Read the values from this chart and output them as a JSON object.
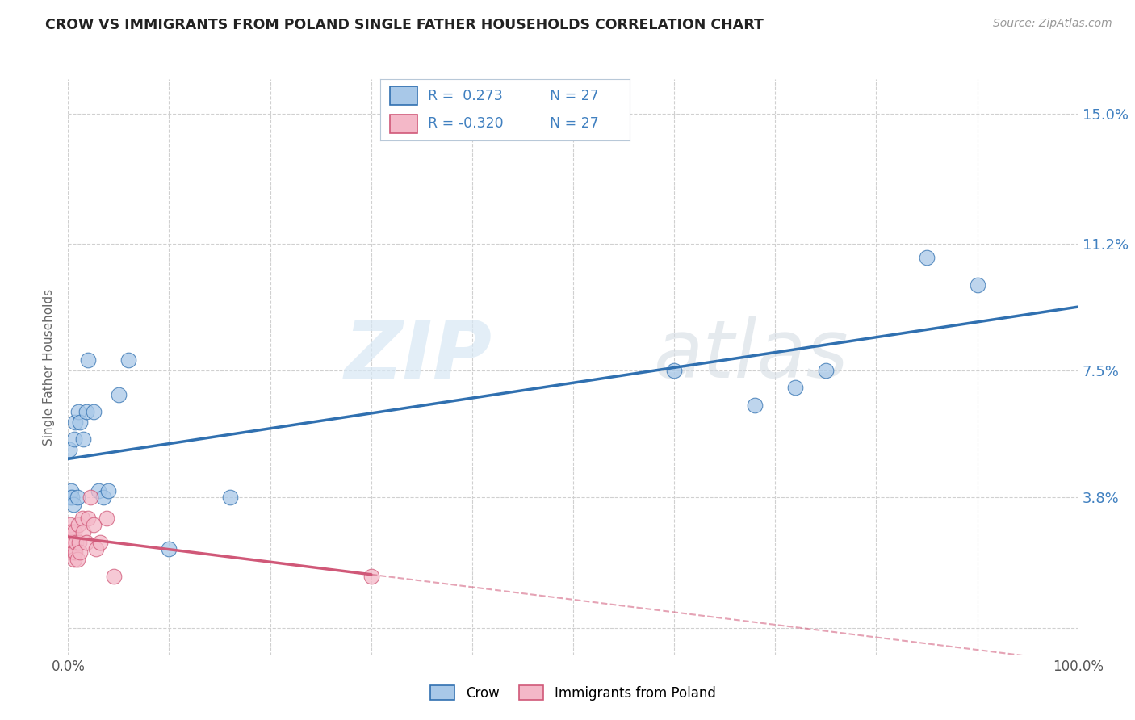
{
  "title": "CROW VS IMMIGRANTS FROM POLAND SINGLE FATHER HOUSEHOLDS CORRELATION CHART",
  "source": "Source: ZipAtlas.com",
  "ylabel": "Single Father Households",
  "yticks": [
    0.0,
    0.038,
    0.075,
    0.112,
    0.15
  ],
  "ytick_labels": [
    "",
    "3.8%",
    "7.5%",
    "11.2%",
    "15.0%"
  ],
  "xlim": [
    0.0,
    1.0
  ],
  "ylim": [
    -0.008,
    0.16
  ],
  "legend_r_blue": "R =  0.273",
  "legend_n_blue": "N = 27",
  "legend_r_pink": "R = -0.320",
  "legend_n_pink": "N = 27",
  "legend_label_blue": "Crow",
  "legend_label_pink": "Immigrants from Poland",
  "watermark_zip": "ZIP",
  "watermark_atlas": "atlas",
  "blue_color": "#a8c8e8",
  "pink_color": "#f4b8c8",
  "blue_line_color": "#3070b0",
  "pink_line_color": "#d05878",
  "blue_text_color": "#4080c0",
  "crow_x": [
    0.001,
    0.002,
    0.003,
    0.004,
    0.005,
    0.006,
    0.007,
    0.009,
    0.01,
    0.012,
    0.015,
    0.018,
    0.02,
    0.025,
    0.03,
    0.035,
    0.04,
    0.05,
    0.06,
    0.1,
    0.16,
    0.6,
    0.68,
    0.72,
    0.75,
    0.85,
    0.9
  ],
  "crow_y": [
    0.052,
    0.038,
    0.04,
    0.038,
    0.036,
    0.055,
    0.06,
    0.038,
    0.063,
    0.06,
    0.055,
    0.063,
    0.078,
    0.063,
    0.04,
    0.038,
    0.04,
    0.068,
    0.078,
    0.023,
    0.038,
    0.075,
    0.065,
    0.07,
    0.075,
    0.108,
    0.1
  ],
  "poland_x": [
    0.001,
    0.002,
    0.002,
    0.003,
    0.003,
    0.004,
    0.005,
    0.005,
    0.006,
    0.006,
    0.007,
    0.008,
    0.009,
    0.01,
    0.011,
    0.012,
    0.014,
    0.015,
    0.018,
    0.02,
    0.022,
    0.025,
    0.028,
    0.032,
    0.038,
    0.045,
    0.3
  ],
  "poland_y": [
    0.028,
    0.025,
    0.03,
    0.022,
    0.028,
    0.025,
    0.025,
    0.022,
    0.02,
    0.028,
    0.022,
    0.025,
    0.02,
    0.03,
    0.025,
    0.022,
    0.032,
    0.028,
    0.025,
    0.032,
    0.038,
    0.03,
    0.023,
    0.025,
    0.032,
    0.015,
    0.015
  ],
  "background_color": "#ffffff",
  "grid_color": "#d0d0d0"
}
